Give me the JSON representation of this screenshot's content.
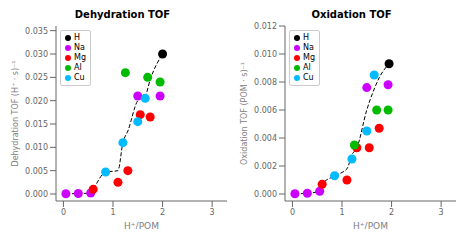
{
  "chart_data": [
    {
      "type": "scatter",
      "title": "Dehydration TOF",
      "xlabel": "H⁺/POM",
      "ylabel": "Dehydration TOF (H⁺ · s)⁻¹",
      "xlim": [
        -0.15,
        3.3
      ],
      "ylim": [
        -0.0015,
        0.036
      ],
      "xticks": [
        0,
        1,
        2,
        3
      ],
      "yticks": [
        {
          "value": 0,
          "label": "0.000"
        },
        0.005,
        {
          "value": 0.01,
          "label": "0.010"
        },
        0.015,
        {
          "value": 0.02,
          "label": "0.020"
        },
        0.025,
        {
          "value": 0.03,
          "label": "0.030"
        },
        0.035
      ],
      "legend": "upper left",
      "series": [
        {
          "type": "line",
          "line_style": "dashed",
          "color": "#000000",
          "x": [
            0.05,
            0.3,
            0.55,
            0.6,
            0.85,
            1.1,
            1.2,
            1.3,
            1.5,
            1.65,
            1.75,
            2.0
          ],
          "values": [
            5e-05,
            0.0001,
            0.0002,
            0.001,
            0.0047,
            0.005,
            0.011,
            0.0135,
            0.02,
            0.021,
            0.0245,
            0.03
          ]
        },
        {
          "name": "H",
          "color": "#000000",
          "x": [
            2.0
          ],
          "values": [
            0.03
          ]
        },
        {
          "name": "Na",
          "color": "#cc00ff",
          "x": [
            0.05,
            0.3,
            0.55,
            1.5,
            1.95
          ],
          "values": [
            5e-05,
            0.0001,
            0.0002,
            0.021,
            0.021
          ]
        },
        {
          "name": "Mg",
          "color": "#ff0000",
          "x": [
            0.6,
            1.1,
            1.3,
            1.55,
            1.75
          ],
          "values": [
            0.001,
            0.0025,
            0.005,
            0.017,
            0.0165
          ]
        },
        {
          "name": "Al",
          "color": "#00bb00",
          "x": [
            1.25,
            1.7,
            1.95
          ],
          "values": [
            0.026,
            0.025,
            0.024
          ]
        },
        {
          "name": "Cu",
          "color": "#00bbff",
          "x": [
            0.85,
            1.2,
            1.5,
            1.65
          ],
          "values": [
            0.0047,
            0.011,
            0.0155,
            0.0205
          ]
        }
      ]
    },
    {
      "type": "scatter",
      "title": "Oxidation TOF",
      "xlabel": "H⁺/POM",
      "ylabel": "Oxidation TOF (POM · s)⁻¹",
      "xlim": [
        -0.15,
        3.3
      ],
      "ylim": [
        -0.0005,
        0.012
      ],
      "xticks": [
        0,
        1,
        2,
        3
      ],
      "yticks": [
        {
          "value": 0,
          "label": "0.000"
        },
        0.002,
        0.004,
        0.006,
        0.008,
        {
          "value": 0.01,
          "label": "0.010"
        },
        0.012
      ],
      "legend": "upper left",
      "series": [
        {
          "type": "line",
          "line_style": "dashed",
          "color": "#000000",
          "x": [
            0.05,
            0.3,
            0.55,
            0.6,
            0.85,
            1.1,
            1.2,
            1.3,
            1.5,
            1.65,
            1.75,
            1.95
          ],
          "values": [
            2e-05,
            5e-05,
            0.0002,
            0.0007,
            0.0013,
            0.0018,
            0.0028,
            0.0033,
            0.006,
            0.0075,
            0.0083,
            0.0093
          ]
        },
        {
          "name": "H",
          "color": "#000000",
          "x": [
            1.95
          ],
          "values": [
            0.0093
          ]
        },
        {
          "name": "Na",
          "color": "#cc00ff",
          "x": [
            0.05,
            0.3,
            0.55,
            1.5,
            1.93
          ],
          "values": [
            2e-05,
            5e-05,
            0.0002,
            0.0076,
            0.0078
          ]
        },
        {
          "name": "Mg",
          "color": "#ff0000",
          "x": [
            0.6,
            1.1,
            1.3,
            1.55,
            1.75
          ],
          "values": [
            0.0007,
            0.001,
            0.0033,
            0.0033,
            0.0047
          ]
        },
        {
          "name": "Al",
          "color": "#00bb00",
          "x": [
            1.25,
            1.7,
            1.93
          ],
          "values": [
            0.0035,
            0.006,
            0.006
          ]
        },
        {
          "name": "Cu",
          "color": "#00bbff",
          "x": [
            0.85,
            1.2,
            1.5,
            1.65
          ],
          "values": [
            0.0013,
            0.0025,
            0.0045,
            0.0085
          ]
        }
      ]
    }
  ]
}
